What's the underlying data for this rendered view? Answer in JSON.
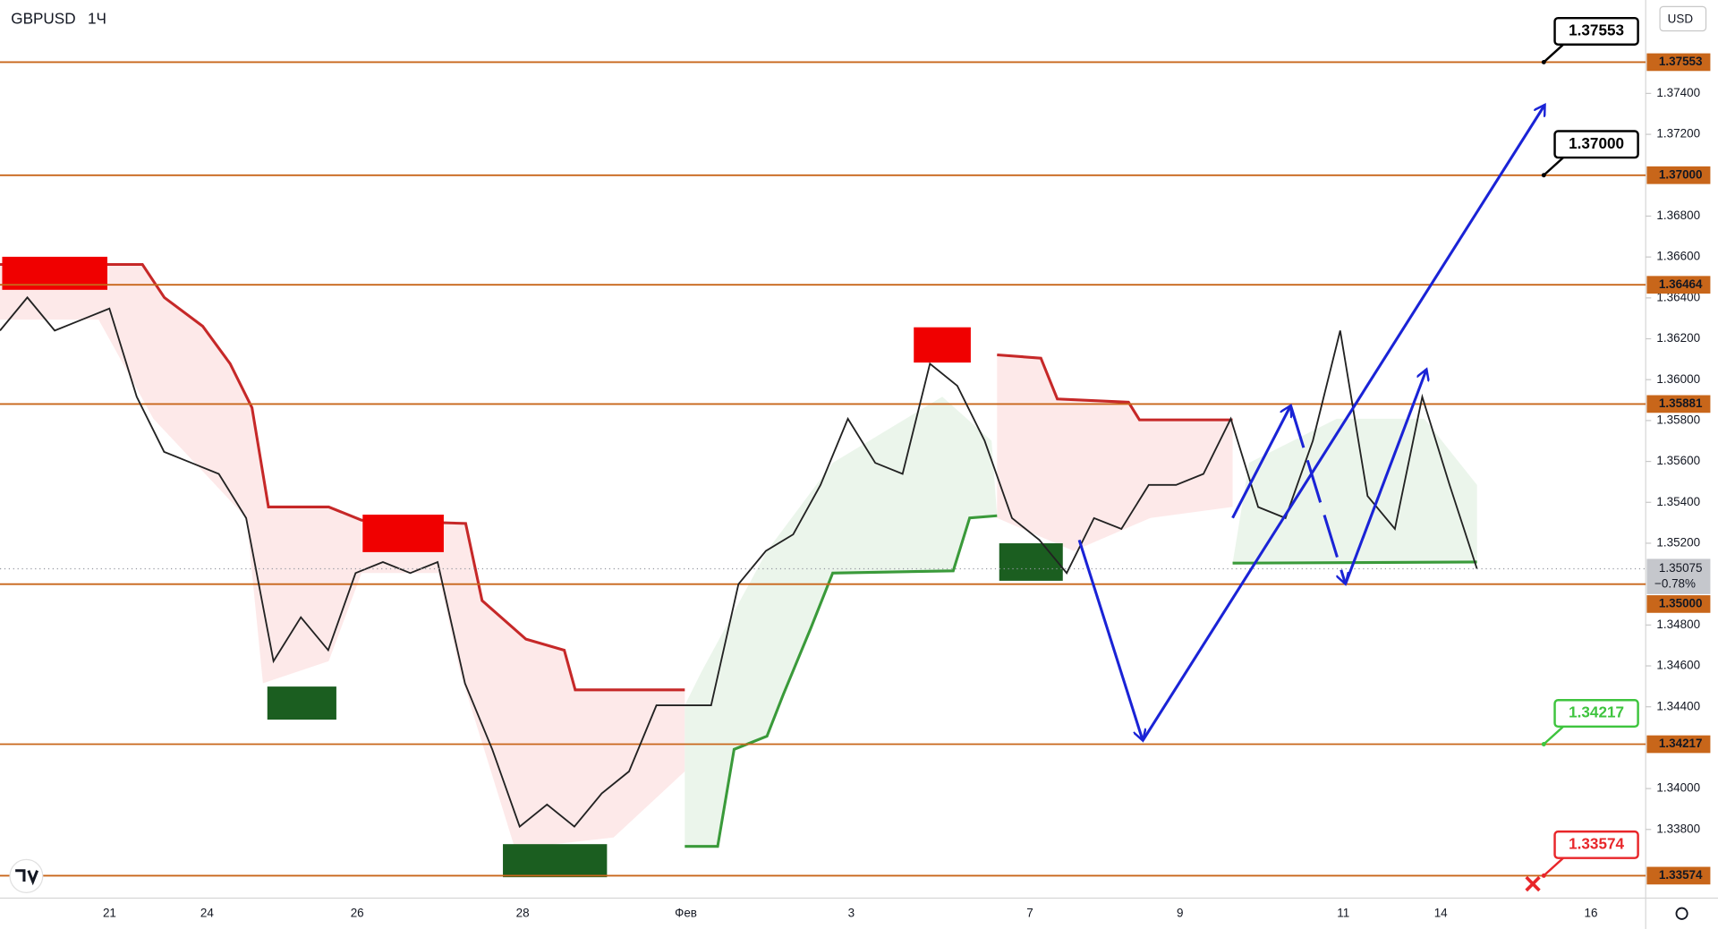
{
  "header": {
    "symbol": "GBPUSD",
    "interval": "1Ч",
    "currency": "USD"
  },
  "chart_data": {
    "type": "line",
    "color": "#222222",
    "values": [
      1.3624,
      1.36402,
      1.3624,
      1.36294,
      1.36348,
      1.35916,
      1.35647,
      1.35593,
      1.35539,
      1.35323,
      1.34623,
      1.34838,
      1.34677,
      1.35054,
      1.35108,
      1.35054,
      1.35108,
      1.34515,
      1.34191,
      1.33814,
      1.33922,
      1.33814,
      1.33976,
      1.34084,
      1.34407,
      1.34407,
      1.34407,
      1.35,
      1.35162,
      1.35243,
      1.35485,
      1.35809,
      1.35593,
      1.35539,
      1.36078,
      1.3597,
      1.35701,
      1.35323,
      1.35216,
      1.35054,
      1.35323,
      1.3527,
      1.35485,
      1.35485,
      1.35539,
      1.35809,
      1.35377,
      1.35323,
      1.35701,
      1.3624,
      1.35431,
      1.3527,
      1.35916,
      1.35485,
      1.35075
    ],
    "xlabels": [
      "21",
      "24",
      "26",
      "28",
      "Фев",
      "3",
      "7",
      "9",
      "11",
      "14",
      "16"
    ],
    "ylim": [
      1.33464,
      1.37857
    ],
    "yticks": [
      {
        "value": 1.374,
        "label": "1.37400"
      },
      {
        "value": 1.372,
        "label": "1.37200"
      },
      {
        "value": 1.368,
        "label": "1.36800"
      },
      {
        "value": 1.366,
        "label": "1.36600"
      },
      {
        "value": 1.364,
        "label": "1.36400"
      },
      {
        "value": 1.362,
        "label": "1.36200"
      },
      {
        "value": 1.36,
        "label": "1.36000"
      },
      {
        "value": 1.358,
        "label": "1.35800"
      },
      {
        "value": 1.356,
        "label": "1.35600"
      },
      {
        "value": 1.354,
        "label": "1.35400"
      },
      {
        "value": 1.352,
        "label": "1.35200"
      },
      {
        "value": 1.348,
        "label": "1.34800"
      },
      {
        "value": 1.346,
        "label": "1.34600"
      },
      {
        "value": 1.344,
        "label": "1.34400"
      },
      {
        "value": 1.34,
        "label": "1.34000"
      },
      {
        "value": 1.338,
        "label": "1.33800"
      }
    ],
    "level_color": "#c8661a",
    "levels": [
      {
        "value": 1.37553,
        "label": "1.37553"
      },
      {
        "value": 1.37,
        "label": "1.37000"
      },
      {
        "value": 1.36464,
        "label": "1.36464"
      },
      {
        "value": 1.35881,
        "label": "1.35881"
      },
      {
        "value": 1.35,
        "label": "1.35000"
      },
      {
        "value": 1.34217,
        "label": "1.34217"
      },
      {
        "value": 1.33574,
        "label": "1.33574"
      }
    ],
    "callouts": [
      {
        "value": 1.37553,
        "label": "1.37553",
        "color": "#000000"
      },
      {
        "value": 1.37,
        "label": "1.37000",
        "color": "#000000"
      },
      {
        "value": 1.34217,
        "label": "1.34217",
        "color": "#3ec43e"
      },
      {
        "value": 1.33574,
        "label": "1.33574",
        "color": "#e8262a"
      }
    ],
    "last": {
      "value": 1.35075,
      "label": "1.35075",
      "change": "−0.78%"
    }
  }
}
